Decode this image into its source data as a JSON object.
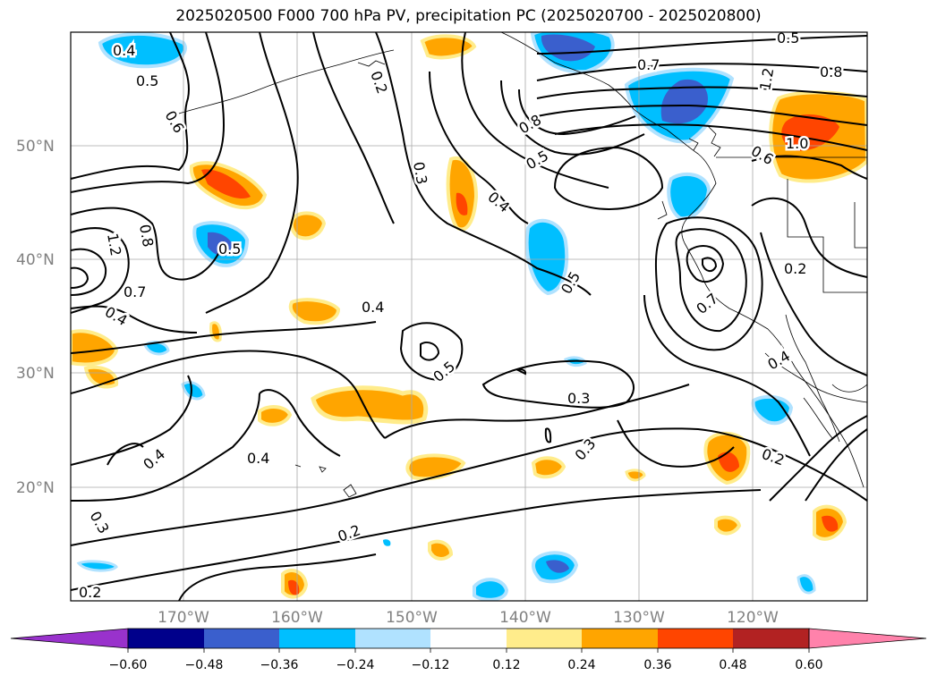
{
  "title": "2025020500 F000 700 hPa PV, precipitation PC (2025020700 - 2025020800)",
  "lat_labels": [
    "50°N",
    "40°N",
    "30°N",
    "20°N"
  ],
  "lon_labels": [
    "170°W",
    "160°W",
    "150°W",
    "140°W",
    "130°W",
    "120°W"
  ],
  "contour_labels": [
    "0.4",
    "0.5",
    "0.6",
    "0.2",
    "0.5",
    "0.7",
    "0.8",
    "1.0",
    "0.8",
    "0.5",
    "0.4",
    "0.3",
    "0.5",
    "0.4",
    "0.3",
    "0.3",
    "0.2",
    "0.2",
    "0.5",
    "0.4",
    "0.7",
    "0.2",
    "0.4",
    "0.3",
    "0.2",
    "0.7",
    "0.8",
    "1.2",
    "0.4",
    "0.5",
    "0.4",
    "1.2",
    "0.6"
  ],
  "colorbar": {
    "ticks": [
      "−0.60",
      "−0.48",
      "−0.36",
      "−0.24",
      "−0.12",
      "0.12",
      "0.24",
      "0.36",
      "0.48",
      "0.60"
    ],
    "colors": [
      "#9932cc",
      "#00008b",
      "#3a5fcd",
      "#00bfff",
      "#b0e2ff",
      "#ffffff",
      "#ffec8b",
      "#ffa500",
      "#ff4500",
      "#b22222",
      "#ff82ab"
    ]
  }
}
